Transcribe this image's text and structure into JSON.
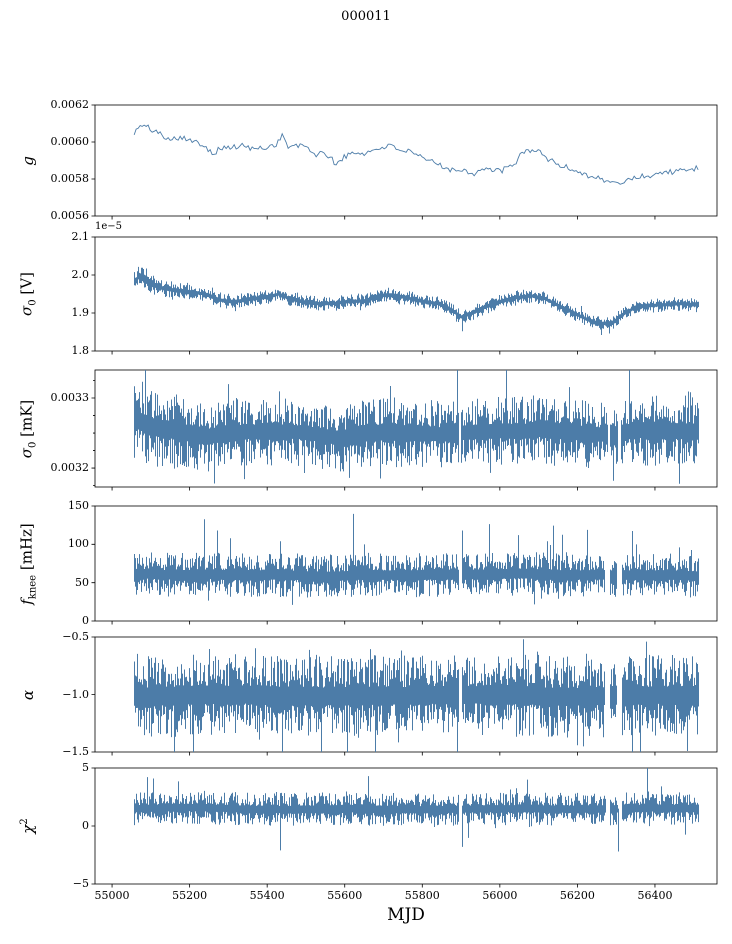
{
  "title": "000011",
  "accent_color": "#4c7ca8",
  "axis_color": "#000000",
  "xaxis": {
    "label": "MJD",
    "xlim": [
      54956,
      56560
    ],
    "ticks": [
      55000,
      55200,
      55400,
      55600,
      55800,
      56000,
      56200,
      56400
    ],
    "tick_labels": [
      "55000",
      "55200",
      "55400",
      "55600",
      "55800",
      "56000",
      "56200",
      "56400"
    ],
    "data_range": [
      55057,
      56512
    ]
  },
  "chart_data": [
    {
      "name": "g",
      "type": "noisy_line",
      "ylabel": {
        "text": "g",
        "italic": true
      },
      "ylim": [
        0.0056,
        0.0062
      ],
      "yticks": [
        0.0056,
        0.0058,
        0.006,
        0.0062
      ],
      "ytick_labels": [
        "0.0056",
        "0.0058",
        "0.0060",
        "0.0062"
      ],
      "seed": 101,
      "noise": 1.6e-05,
      "trend": [
        [
          55057,
          0.00605
        ],
        [
          55075,
          0.00609
        ],
        [
          55090,
          0.00608
        ],
        [
          55110,
          0.00606
        ],
        [
          55135,
          0.00603
        ],
        [
          55160,
          0.00602
        ],
        [
          55185,
          0.00603
        ],
        [
          55205,
          0.006
        ],
        [
          55235,
          0.00599
        ],
        [
          55260,
          0.00594
        ],
        [
          55285,
          0.00597
        ],
        [
          55310,
          0.00597
        ],
        [
          55340,
          0.00598
        ],
        [
          55365,
          0.00596
        ],
        [
          55395,
          0.00597
        ],
        [
          55425,
          0.00599
        ],
        [
          55438,
          0.00604
        ],
        [
          55455,
          0.00597
        ],
        [
          55480,
          0.00598
        ],
        [
          55505,
          0.00597
        ],
        [
          55525,
          0.00593
        ],
        [
          55550,
          0.00594
        ],
        [
          55578,
          0.00588
        ],
        [
          55598,
          0.00592
        ],
        [
          55625,
          0.00594
        ],
        [
          55655,
          0.00594
        ],
        [
          55680,
          0.00596
        ],
        [
          55705,
          0.00598
        ],
        [
          55730,
          0.00597
        ],
        [
          55760,
          0.00595
        ],
        [
          55790,
          0.00592
        ],
        [
          55815,
          0.0059
        ],
        [
          55845,
          0.00588
        ],
        [
          55875,
          0.00585
        ],
        [
          55905,
          0.00585
        ],
        [
          55935,
          0.00583
        ],
        [
          55960,
          0.00586
        ],
        [
          55985,
          0.00584
        ],
        [
          56010,
          0.00585
        ],
        [
          56035,
          0.00587
        ],
        [
          56060,
          0.00595
        ],
        [
          56085,
          0.00596
        ],
        [
          56105,
          0.00594
        ],
        [
          56130,
          0.0059
        ],
        [
          56160,
          0.00587
        ],
        [
          56190,
          0.00585
        ],
        [
          56215,
          0.00583
        ],
        [
          56245,
          0.00581
        ],
        [
          56275,
          0.00579
        ],
        [
          56305,
          0.00577
        ],
        [
          56330,
          0.0058
        ],
        [
          56355,
          0.00581
        ],
        [
          56385,
          0.00582
        ],
        [
          56410,
          0.00583
        ],
        [
          56435,
          0.00584
        ],
        [
          56460,
          0.00584
        ],
        [
          56485,
          0.00585
        ],
        [
          56510,
          0.00586
        ]
      ]
    },
    {
      "name": "sigma0-V",
      "type": "noisy_band",
      "ylabel": {
        "text": "σ",
        "sub": "0",
        "suffix": " [V]",
        "italic": true
      },
      "offset_text": "1e−5",
      "ylim": [
        1.8,
        2.1
      ],
      "yticks": [
        1.8,
        1.9,
        2.0,
        2.1
      ],
      "ytick_labels": [
        "1.8",
        "1.9",
        "2.0",
        "2.1"
      ],
      "seed": 202,
      "halfwidth": 0.016,
      "halfwidth_trend": [
        [
          55057,
          0.024
        ],
        [
          55120,
          0.02
        ],
        [
          55200,
          0.016
        ],
        [
          56510,
          0.016
        ]
      ],
      "trend": [
        [
          55057,
          1.98
        ],
        [
          55070,
          2.0
        ],
        [
          55085,
          1.985
        ],
        [
          55100,
          1.975
        ],
        [
          55130,
          1.965
        ],
        [
          55160,
          1.96
        ],
        [
          55200,
          1.955
        ],
        [
          55240,
          1.95
        ],
        [
          55270,
          1.935
        ],
        [
          55310,
          1.93
        ],
        [
          55350,
          1.935
        ],
        [
          55390,
          1.94
        ],
        [
          55430,
          1.95
        ],
        [
          55450,
          1.94
        ],
        [
          55490,
          1.93
        ],
        [
          55530,
          1.925
        ],
        [
          55570,
          1.925
        ],
        [
          55610,
          1.93
        ],
        [
          55650,
          1.932
        ],
        [
          55690,
          1.945
        ],
        [
          55720,
          1.948
        ],
        [
          55760,
          1.94
        ],
        [
          55800,
          1.93
        ],
        [
          55840,
          1.925
        ],
        [
          55870,
          1.91
        ],
        [
          55900,
          1.89
        ],
        [
          55930,
          1.9
        ],
        [
          55960,
          1.915
        ],
        [
          56000,
          1.93
        ],
        [
          56040,
          1.94
        ],
        [
          56080,
          1.945
        ],
        [
          56110,
          1.94
        ],
        [
          56150,
          1.92
        ],
        [
          56190,
          1.9
        ],
        [
          56230,
          1.88
        ],
        [
          56260,
          1.872
        ],
        [
          56290,
          1.875
        ],
        [
          56320,
          1.9
        ],
        [
          56350,
          1.915
        ],
        [
          56390,
          1.92
        ],
        [
          56430,
          1.922
        ],
        [
          56470,
          1.925
        ],
        [
          56510,
          1.92
        ]
      ],
      "spikes": [
        [
          55902,
          1.852
        ],
        [
          56262,
          1.842
        ]
      ]
    },
    {
      "name": "sigma0-mK",
      "type": "noisy_band",
      "ylabel": {
        "text": "σ",
        "sub": "0",
        "suffix": " [mK]",
        "italic": true
      },
      "ylim": [
        0.003173,
        0.00334
      ],
      "yticks": [
        0.0032,
        0.0033
      ],
      "ytick_labels": [
        "0.0032",
        "0.0033"
      ],
      "yticks_minor": [
        0.003175,
        0.003225,
        0.00325,
        0.003275,
        0.003325
      ],
      "seed": 303,
      "halfwidth": 4e-05,
      "halfwidth_trend": [
        [
          55057,
          5e-05
        ],
        [
          55150,
          4.5e-05
        ],
        [
          55300,
          4.2e-05
        ],
        [
          55500,
          3.8e-05
        ],
        [
          55700,
          4.2e-05
        ],
        [
          55900,
          4e-05
        ],
        [
          56100,
          4.2e-05
        ],
        [
          56300,
          4e-05
        ],
        [
          56510,
          4.6e-05
        ]
      ],
      "trend": [
        [
          55057,
          0.00327
        ],
        [
          55090,
          0.003262
        ],
        [
          55130,
          0.003255
        ],
        [
          55170,
          0.003252
        ],
        [
          55210,
          0.003248
        ],
        [
          55250,
          0.003245
        ],
        [
          55300,
          0.00325
        ],
        [
          55350,
          0.003252
        ],
        [
          55400,
          0.00325
        ],
        [
          55450,
          0.003253
        ],
        [
          55500,
          0.00325
        ],
        [
          55550,
          0.003246
        ],
        [
          55600,
          0.003242
        ],
        [
          55650,
          0.003248
        ],
        [
          55700,
          0.003252
        ],
        [
          55750,
          0.00325
        ],
        [
          55800,
          0.00325
        ],
        [
          55850,
          0.003248
        ],
        [
          55900,
          0.00325
        ],
        [
          55950,
          0.003252
        ],
        [
          56000,
          0.003253
        ],
        [
          56050,
          0.003252
        ],
        [
          56100,
          0.003255
        ],
        [
          56150,
          0.003252
        ],
        [
          56200,
          0.00325
        ],
        [
          56250,
          0.003248
        ],
        [
          56300,
          0.00325
        ],
        [
          56350,
          0.003253
        ],
        [
          56400,
          0.003255
        ],
        [
          56450,
          0.003253
        ],
        [
          56510,
          0.003252
        ]
      ],
      "spikes": [
        [
          55085,
          0.003352
        ],
        [
          55262,
          0.003178
        ],
        [
          55612,
          0.003186
        ],
        [
          55890,
          0.003366
        ],
        [
          56017,
          0.003358
        ],
        [
          56292,
          0.003182
        ],
        [
          56332,
          0.003348
        ]
      ],
      "gaps": [
        [
          55894,
          55899
        ],
        [
          56278,
          56284
        ],
        [
          56304,
          56310
        ]
      ]
    },
    {
      "name": "fknee",
      "type": "noisy_band",
      "ylabel": {
        "text": "f",
        "sub": "knee",
        "suffix": " [mHz]",
        "italic": true
      },
      "ylim": [
        0,
        150
      ],
      "yticks": [
        0,
        50,
        100,
        150
      ],
      "ytick_labels": [
        "0",
        "50",
        "100",
        "150"
      ],
      "seed": 404,
      "halfwidth": 24,
      "spike_prob": 0.006,
      "spike_dir": "up",
      "trend": [
        [
          55057,
          62
        ],
        [
          55150,
          60
        ],
        [
          55250,
          61
        ],
        [
          55350,
          60
        ],
        [
          55450,
          60
        ],
        [
          55550,
          58
        ],
        [
          55650,
          60
        ],
        [
          55750,
          60
        ],
        [
          55850,
          60
        ],
        [
          55950,
          61
        ],
        [
          56050,
          62
        ],
        [
          56150,
          60
        ],
        [
          56250,
          60
        ],
        [
          56350,
          60
        ],
        [
          56450,
          60
        ],
        [
          56510,
          58
        ]
      ],
      "spikes": [
        [
          55270,
          118
        ],
        [
          55305,
          108
        ],
        [
          55432,
          104
        ],
        [
          55650,
          100
        ],
        [
          55902,
          118
        ],
        [
          56048,
          112
        ],
        [
          56122,
          104
        ],
        [
          56352,
          100
        ],
        [
          56462,
          96
        ]
      ],
      "gaps": [
        [
          55894,
          55901
        ],
        [
          56271,
          56284
        ],
        [
          56301,
          56315
        ]
      ]
    },
    {
      "name": "alpha",
      "type": "noisy_band",
      "ylabel": {
        "text": "α",
        "italic": true
      },
      "ylim": [
        -1.5,
        -0.5
      ],
      "yticks": [
        -1.5,
        -1.0,
        -0.5
      ],
      "ytick_labels": [
        "−1.5",
        "−1.0",
        "−0.5"
      ],
      "seed": 505,
      "halfwidth": 0.3,
      "spike_prob": 0.008,
      "spike_dir": "down",
      "trend": [
        [
          55057,
          -1.02
        ],
        [
          55300,
          -1.0
        ],
        [
          55600,
          -1.02
        ],
        [
          55900,
          -1.0
        ],
        [
          56200,
          -1.02
        ],
        [
          56510,
          -1.0
        ]
      ],
      "spikes": [
        [
          55210,
          -1.54
        ],
        [
          55438,
          -1.52
        ],
        [
          55605,
          -1.55
        ],
        [
          56060,
          -0.52
        ],
        [
          56342,
          -1.54
        ]
      ],
      "gaps": [
        [
          55894,
          55901
        ],
        [
          56271,
          56284
        ],
        [
          56301,
          56315
        ]
      ]
    },
    {
      "name": "chi2",
      "type": "noisy_band",
      "ylabel": {
        "text": "χ",
        "sup": "2",
        "italic": true
      },
      "ylim": [
        -5,
        5
      ],
      "yticks": [
        -5,
        0,
        5
      ],
      "ytick_labels": [
        "−5",
        "0",
        "5"
      ],
      "seed": 606,
      "halfwidth": 1.2,
      "spike_prob": 0.006,
      "spike_dir": "both",
      "trend": [
        [
          55057,
          1.5
        ],
        [
          55200,
          1.6
        ],
        [
          55400,
          1.4
        ],
        [
          55600,
          1.5
        ],
        [
          55800,
          1.4
        ],
        [
          56000,
          1.5
        ],
        [
          56200,
          1.45
        ],
        [
          56400,
          1.55
        ],
        [
          56510,
          1.5
        ]
      ],
      "spikes": [
        [
          55105,
          4.1
        ],
        [
          55432,
          -2.1
        ],
        [
          55660,
          4.3
        ],
        [
          55902,
          -1.8
        ],
        [
          56070,
          4.0
        ],
        [
          56305,
          -2.2
        ]
      ],
      "gaps": [
        [
          55894,
          55900
        ],
        [
          56273,
          56283
        ],
        [
          56303,
          56313
        ]
      ]
    }
  ]
}
